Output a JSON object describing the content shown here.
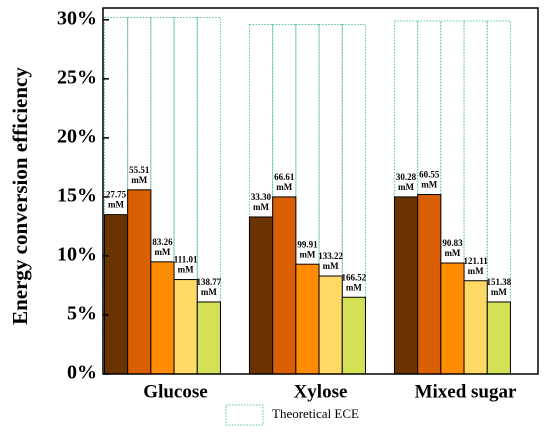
{
  "chart_data": {
    "type": "bar",
    "y_label": "Energy conversion efficiency",
    "categories": [
      "Glucose",
      "Xylose",
      "Mixed sugar"
    ],
    "background_series": {
      "name": "Theoretical ECE",
      "color": "#5fbfa8",
      "values": [
        30.2,
        29.6,
        29.9
      ]
    },
    "series": [
      {
        "color": "#6b3300",
        "values": [
          13.5,
          13.3,
          15.0
        ]
      },
      {
        "color": "#d95f02",
        "values": [
          15.6,
          15.0,
          15.2
        ]
      },
      {
        "color": "#ff8c00",
        "values": [
          9.5,
          9.3,
          9.4
        ]
      },
      {
        "color": "#ffd966",
        "values": [
          8.0,
          8.3,
          7.9
        ]
      },
      {
        "color": "#d4e157",
        "values": [
          6.1,
          6.5,
          6.1
        ]
      }
    ],
    "bar_labels": [
      [
        [
          "27.75",
          "mM"
        ],
        [
          "55.51",
          "mM"
        ],
        [
          "83.26",
          "mM"
        ],
        [
          "111.01",
          "mM"
        ],
        [
          "138.77",
          "mM"
        ]
      ],
      [
        [
          "33.30",
          "mM"
        ],
        [
          "66.61",
          "mM"
        ],
        [
          "99.91",
          "mM"
        ],
        [
          "133.22",
          "mM"
        ],
        [
          "166.52",
          "mM"
        ]
      ],
      [
        [
          "30.28",
          "mM"
        ],
        [
          "60.55",
          "mM"
        ],
        [
          "90.83",
          "mM"
        ],
        [
          "121.11",
          "mM"
        ],
        [
          "151.38",
          "mM"
        ]
      ]
    ],
    "ylim": [
      0,
      31
    ],
    "yticks": [
      {
        "value": 0,
        "label": "0%"
      },
      {
        "value": 5,
        "label": "5%"
      },
      {
        "value": 10,
        "label": "10%"
      },
      {
        "value": 15,
        "label": "15%"
      },
      {
        "value": 20,
        "label": "20%"
      },
      {
        "value": 25,
        "label": "25%"
      },
      {
        "value": 30,
        "label": "30%"
      }
    ],
    "legend": "bottom"
  }
}
